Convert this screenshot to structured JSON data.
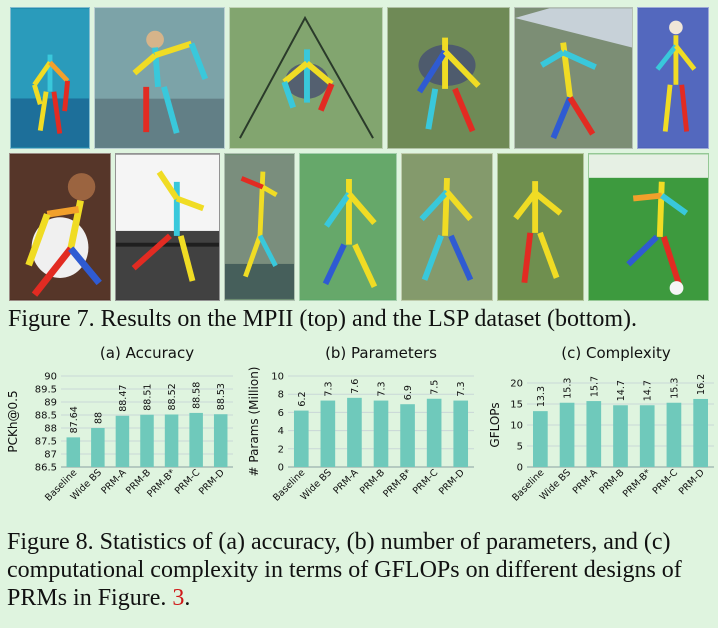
{
  "figure7": {
    "caption": "Figure 7.  Results on the MPII (top) and the LSP dataset (bottom)."
  },
  "figure8": {
    "caption_before": "Figure 8. Statistics of (a) accuracy, (b) number of parameters, and (c) computational complexity in terms of GFLOPs on different designs of PRMs in Figure. ",
    "caption_ref": "3",
    "caption_after": "."
  },
  "colors": {
    "bar": "#6fc9bb",
    "skeleton_yellow": "#f0dc24",
    "skeleton_red": "#e22b22",
    "skeleton_cyan": "#39c8db",
    "skeleton_blue": "#2f5bd2",
    "skeleton_orange": "#f2a02b",
    "background": "#dff4df"
  },
  "chart_data": [
    {
      "type": "bar",
      "title": "(a) Accuracy",
      "ylabel": "PCKh@0.5",
      "categories": [
        "Baseline",
        "Wide BS",
        "PRM-A",
        "PRM-B",
        "PRM-B*",
        "PRM-C",
        "PRM-D"
      ],
      "values": [
        87.64,
        88,
        88.47,
        88.51,
        88.52,
        88.58,
        88.53
      ],
      "labels": [
        "87.64",
        "88",
        "88.47",
        "88.51",
        "88.52",
        "88.58",
        "88.53"
      ],
      "ylim": [
        86.5,
        90
      ],
      "yticks": [
        86.5,
        87,
        87.5,
        88,
        88.5,
        89,
        89.5,
        90
      ],
      "ytick_labels": [
        "86.5",
        "87",
        "87.5",
        "88",
        "88.5",
        "89",
        "89.5",
        "90"
      ],
      "grid": true
    },
    {
      "type": "bar",
      "title": "(b) Parameters",
      "ylabel": "# Params (Million)",
      "categories": [
        "Baseline",
        "Wide BS",
        "PRM-A",
        "PRM-B",
        "PRM-B*",
        "PRM-C",
        "PRM-D"
      ],
      "values": [
        6.2,
        7.3,
        7.6,
        7.3,
        6.9,
        7.5,
        7.3
      ],
      "labels": [
        "6.2",
        "7.3",
        "7.6",
        "7.3",
        "6.9",
        "7.5",
        "7.3"
      ],
      "ylim": [
        0,
        10
      ],
      "yticks": [
        0,
        2,
        4,
        6,
        8,
        10
      ],
      "ytick_labels": [
        "0",
        "2",
        "4",
        "6",
        "8",
        "10"
      ],
      "grid": true
    },
    {
      "type": "bar",
      "title": "(c) Complexity",
      "ylabel": "GFLOPs",
      "categories": [
        "Baseline",
        "Wide BS",
        "PRM-A",
        "PRM-B",
        "PRM-B*",
        "PRM-C",
        "PRM-D"
      ],
      "values": [
        13.3,
        15.3,
        15.7,
        14.7,
        14.7,
        15.3,
        16.2
      ],
      "labels": [
        "13.3",
        "15.3",
        "15.7",
        "14.7",
        "14.7",
        "15.3",
        "16.2"
      ],
      "ylim": [
        0,
        20
      ],
      "yticks": [
        0,
        5,
        10,
        15,
        20
      ],
      "ytick_labels": [
        "0",
        "5",
        "10",
        "15",
        "20"
      ],
      "grid": true
    }
  ]
}
